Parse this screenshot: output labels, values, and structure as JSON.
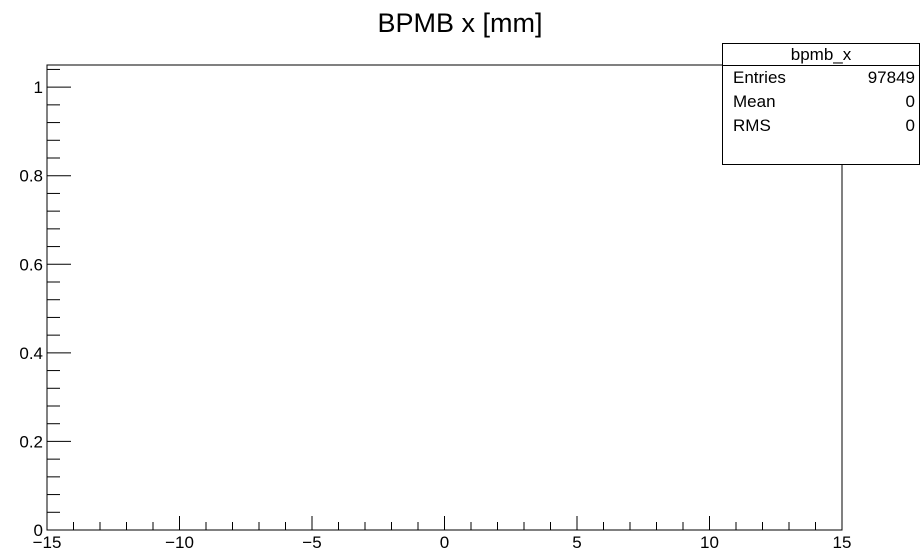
{
  "chart_data": {
    "type": "bar",
    "title": "BPMB x [mm]",
    "xlabel": "",
    "ylabel": "",
    "xlim": [
      -15,
      15
    ],
    "ylim": [
      0,
      1.05
    ],
    "x_ticks": [
      "-15",
      "-10",
      "-5",
      "0",
      "5",
      "10",
      "15"
    ],
    "y_ticks": [
      "0",
      "0.2",
      "0.4",
      "0.6",
      "0.8",
      "1"
    ],
    "series": [
      {
        "values": []
      }
    ],
    "grid": false
  },
  "stats_box": {
    "name": "bpmb_x",
    "rows": [
      {
        "label": "Entries",
        "value": "97849"
      },
      {
        "label": "Mean",
        "value": "0"
      },
      {
        "label": "RMS",
        "value": "0"
      }
    ]
  }
}
